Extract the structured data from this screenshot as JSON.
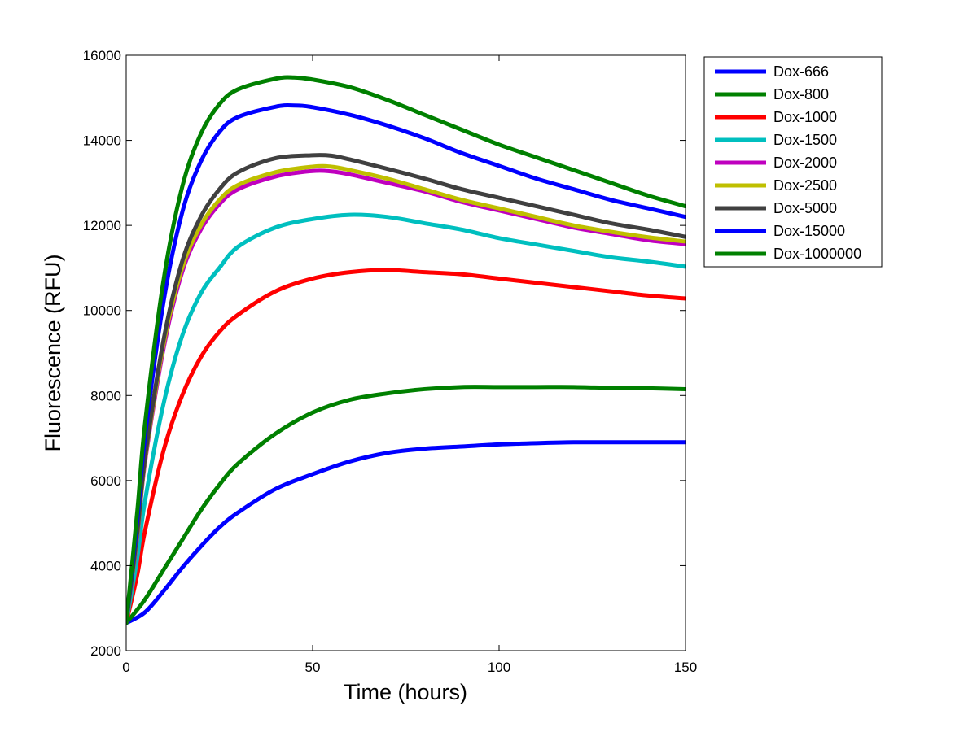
{
  "chart_data": {
    "type": "line",
    "title": "",
    "xlabel": "Time (hours)",
    "ylabel": "Fluorescence (RFU)",
    "xlim": [
      0,
      150
    ],
    "ylim": [
      2000,
      16000
    ],
    "xticks": [
      0,
      50,
      100,
      150
    ],
    "yticks": [
      2000,
      4000,
      6000,
      8000,
      10000,
      12000,
      14000,
      16000
    ],
    "grid": false,
    "legend_position": "outside-top-right",
    "series": [
      {
        "name": "Dox-666",
        "color": "#0000ff",
        "points": [
          [
            0,
            2650
          ],
          [
            5,
            2900
          ],
          [
            10,
            3400
          ],
          [
            15,
            3950
          ],
          [
            20,
            4450
          ],
          [
            25,
            4900
          ],
          [
            30,
            5250
          ],
          [
            40,
            5800
          ],
          [
            50,
            6150
          ],
          [
            60,
            6450
          ],
          [
            70,
            6650
          ],
          [
            80,
            6750
          ],
          [
            90,
            6800
          ],
          [
            100,
            6850
          ],
          [
            110,
            6880
          ],
          [
            120,
            6900
          ],
          [
            130,
            6900
          ],
          [
            140,
            6900
          ],
          [
            150,
            6900
          ]
        ]
      },
      {
        "name": "Dox-800",
        "color": "#008000",
        "points": [
          [
            0,
            2650
          ],
          [
            5,
            3200
          ],
          [
            10,
            3900
          ],
          [
            15,
            4600
          ],
          [
            20,
            5300
          ],
          [
            25,
            5900
          ],
          [
            30,
            6400
          ],
          [
            40,
            7100
          ],
          [
            50,
            7600
          ],
          [
            60,
            7900
          ],
          [
            70,
            8050
          ],
          [
            80,
            8150
          ],
          [
            90,
            8200
          ],
          [
            100,
            8200
          ],
          [
            110,
            8200
          ],
          [
            120,
            8200
          ],
          [
            130,
            8180
          ],
          [
            140,
            8170
          ],
          [
            150,
            8150
          ]
        ]
      },
      {
        "name": "Dox-1000",
        "color": "#ff0000",
        "points": [
          [
            0,
            2650
          ],
          [
            3,
            3800
          ],
          [
            5,
            4800
          ],
          [
            10,
            6700
          ],
          [
            15,
            8000
          ],
          [
            20,
            8900
          ],
          [
            25,
            9500
          ],
          [
            30,
            9900
          ],
          [
            40,
            10450
          ],
          [
            50,
            10750
          ],
          [
            60,
            10900
          ],
          [
            70,
            10950
          ],
          [
            80,
            10900
          ],
          [
            90,
            10850
          ],
          [
            100,
            10750
          ],
          [
            110,
            10650
          ],
          [
            120,
            10550
          ],
          [
            130,
            10450
          ],
          [
            140,
            10350
          ],
          [
            150,
            10280
          ]
        ]
      },
      {
        "name": "Dox-1500",
        "color": "#00bfbf",
        "points": [
          [
            0,
            2650
          ],
          [
            3,
            4200
          ],
          [
            5,
            5500
          ],
          [
            10,
            7800
          ],
          [
            15,
            9400
          ],
          [
            20,
            10400
          ],
          [
            25,
            11000
          ],
          [
            30,
            11500
          ],
          [
            40,
            11950
          ],
          [
            50,
            12150
          ],
          [
            60,
            12250
          ],
          [
            70,
            12200
          ],
          [
            80,
            12050
          ],
          [
            90,
            11900
          ],
          [
            100,
            11700
          ],
          [
            110,
            11550
          ],
          [
            120,
            11400
          ],
          [
            130,
            11250
          ],
          [
            140,
            11150
          ],
          [
            150,
            11030
          ]
        ]
      },
      {
        "name": "Dox-2000",
        "color": "#bf00bf",
        "points": [
          [
            0,
            2650
          ],
          [
            3,
            4700
          ],
          [
            5,
            6400
          ],
          [
            10,
            9100
          ],
          [
            15,
            10900
          ],
          [
            20,
            11900
          ],
          [
            25,
            12500
          ],
          [
            30,
            12850
          ],
          [
            40,
            13150
          ],
          [
            50,
            13280
          ],
          [
            55,
            13270
          ],
          [
            60,
            13200
          ],
          [
            70,
            13000
          ],
          [
            80,
            12800
          ],
          [
            90,
            12550
          ],
          [
            100,
            12350
          ],
          [
            110,
            12150
          ],
          [
            120,
            11950
          ],
          [
            130,
            11800
          ],
          [
            140,
            11650
          ],
          [
            150,
            11560
          ]
        ]
      },
      {
        "name": "Dox-2500",
        "color": "#bfbf00",
        "points": [
          [
            0,
            2650
          ],
          [
            3,
            4750
          ],
          [
            5,
            6450
          ],
          [
            10,
            9200
          ],
          [
            15,
            11000
          ],
          [
            20,
            12000
          ],
          [
            25,
            12600
          ],
          [
            30,
            12950
          ],
          [
            40,
            13250
          ],
          [
            50,
            13380
          ],
          [
            55,
            13380
          ],
          [
            60,
            13300
          ],
          [
            70,
            13100
          ],
          [
            80,
            12850
          ],
          [
            90,
            12600
          ],
          [
            100,
            12400
          ],
          [
            110,
            12200
          ],
          [
            120,
            12000
          ],
          [
            130,
            11850
          ],
          [
            140,
            11720
          ],
          [
            150,
            11620
          ]
        ]
      },
      {
        "name": "Dox-5000",
        "color": "#404040",
        "points": [
          [
            0,
            2650
          ],
          [
            3,
            4800
          ],
          [
            5,
            6500
          ],
          [
            10,
            9300
          ],
          [
            15,
            11150
          ],
          [
            20,
            12200
          ],
          [
            25,
            12850
          ],
          [
            30,
            13250
          ],
          [
            40,
            13580
          ],
          [
            50,
            13650
          ],
          [
            55,
            13640
          ],
          [
            60,
            13550
          ],
          [
            70,
            13330
          ],
          [
            80,
            13100
          ],
          [
            90,
            12850
          ],
          [
            100,
            12650
          ],
          [
            110,
            12450
          ],
          [
            120,
            12250
          ],
          [
            130,
            12050
          ],
          [
            140,
            11900
          ],
          [
            150,
            11730
          ]
        ]
      },
      {
        "name": "Dox-15000",
        "color": "#0000ff",
        "points": [
          [
            0,
            2650
          ],
          [
            3,
            5100
          ],
          [
            5,
            7000
          ],
          [
            10,
            10200
          ],
          [
            15,
            12300
          ],
          [
            20,
            13500
          ],
          [
            25,
            14200
          ],
          [
            30,
            14550
          ],
          [
            40,
            14790
          ],
          [
            45,
            14820
          ],
          [
            50,
            14780
          ],
          [
            60,
            14600
          ],
          [
            70,
            14350
          ],
          [
            80,
            14050
          ],
          [
            90,
            13700
          ],
          [
            100,
            13400
          ],
          [
            110,
            13100
          ],
          [
            120,
            12850
          ],
          [
            130,
            12600
          ],
          [
            140,
            12400
          ],
          [
            150,
            12200
          ]
        ]
      },
      {
        "name": "Dox-1000000",
        "color": "#008000",
        "points": [
          [
            0,
            2650
          ],
          [
            3,
            5300
          ],
          [
            5,
            7300
          ],
          [
            10,
            10700
          ],
          [
            15,
            12900
          ],
          [
            20,
            14150
          ],
          [
            25,
            14850
          ],
          [
            30,
            15200
          ],
          [
            40,
            15450
          ],
          [
            45,
            15480
          ],
          [
            50,
            15430
          ],
          [
            60,
            15250
          ],
          [
            70,
            14950
          ],
          [
            80,
            14600
          ],
          [
            90,
            14250
          ],
          [
            100,
            13900
          ],
          [
            110,
            13600
          ],
          [
            120,
            13300
          ],
          [
            130,
            13000
          ],
          [
            140,
            12700
          ],
          [
            150,
            12450
          ]
        ]
      }
    ]
  }
}
